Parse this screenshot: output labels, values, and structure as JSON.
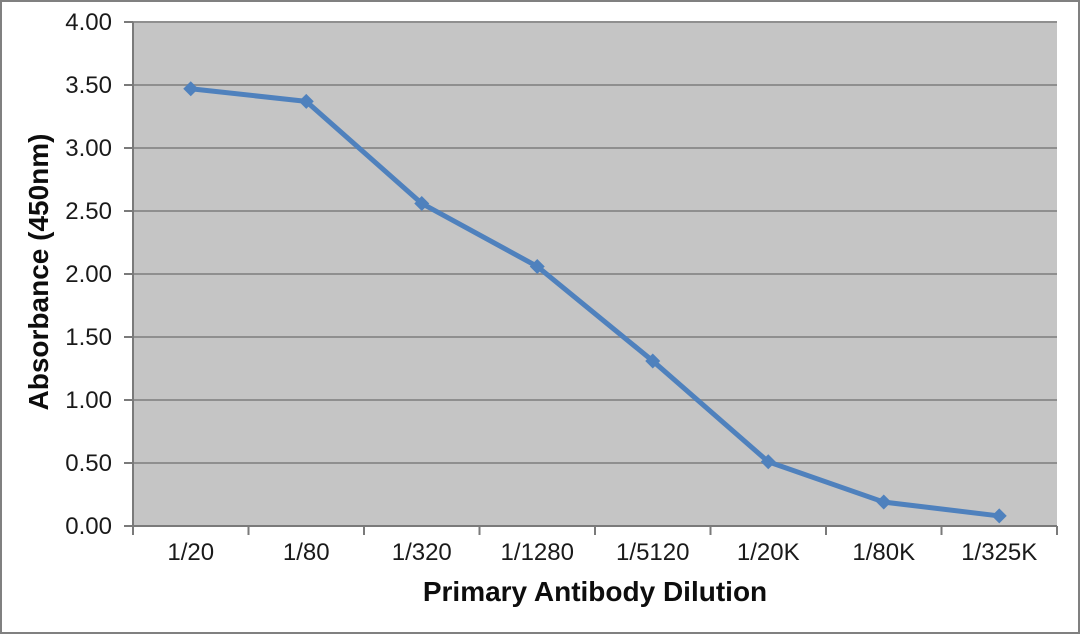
{
  "chart_data": {
    "type": "line",
    "xlabel": "Primary Antibody Dilution",
    "ylabel": "Absorbance (450nm)",
    "categories": [
      "1/20",
      "1/80",
      "1/320",
      "1/1280",
      "1/5120",
      "1/20K",
      "1/80K",
      "1/325K"
    ],
    "series": [
      {
        "name": "Absorbance (450nm)",
        "values": [
          3.47,
          3.37,
          2.56,
          2.06,
          1.31,
          0.51,
          0.19,
          0.08
        ],
        "color": "#4f81bd",
        "marker": "diamond"
      }
    ],
    "ylim": [
      0,
      4
    ],
    "ytick_step": 0.5,
    "ytick_labels": [
      "0.00",
      "0.50",
      "1.00",
      "1.50",
      "2.00",
      "2.50",
      "3.00",
      "3.50",
      "4.00"
    ],
    "grid": "horizontal",
    "legend": "none",
    "colors": {
      "plot_bg": "#c5c5c5",
      "gridline": "#8f8f8f",
      "axis": "#7a7a7a",
      "tick_text": "#1a1a1a",
      "frame_border": "#808080",
      "page_bg": "#ffffff"
    }
  }
}
